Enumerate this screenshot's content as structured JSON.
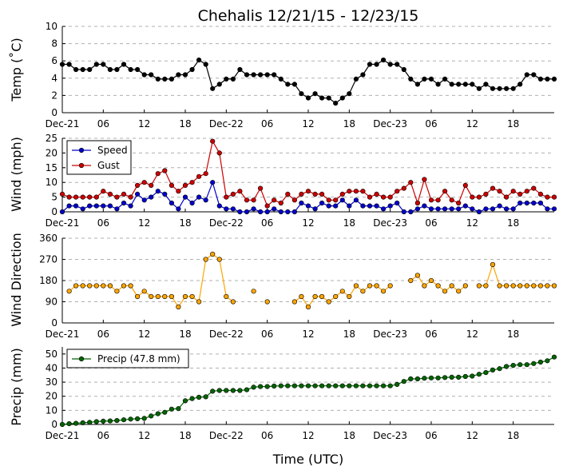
{
  "chart_data": {
    "title": "Chehalis 12/21/15 - 12/23/15",
    "xlabel": "Time (UTC)",
    "x_hours": [
      0,
      1,
      2,
      3,
      4,
      5,
      6,
      7,
      8,
      9,
      10,
      11,
      12,
      13,
      14,
      15,
      16,
      17,
      18,
      19,
      20,
      21,
      22,
      23,
      24,
      25,
      26,
      27,
      28,
      29,
      30,
      31,
      32,
      33,
      34,
      35,
      36,
      37,
      38,
      39,
      40,
      41,
      42,
      43,
      44,
      45,
      46,
      47,
      48,
      49,
      50,
      51,
      52,
      53,
      54,
      55,
      56,
      57,
      58,
      59,
      60,
      61,
      62,
      63,
      64,
      65,
      66,
      67,
      68,
      69,
      70,
      71,
      72
    ],
    "xtick_hours": [
      0,
      6,
      12,
      18,
      24,
      30,
      36,
      42,
      48,
      54,
      60,
      66
    ],
    "xtick_labels": [
      "Dec-21",
      "06",
      "12",
      "18",
      "Dec-22",
      "06",
      "12",
      "18",
      "Dec-23",
      "06",
      "12",
      "18"
    ],
    "panels": [
      {
        "type": "line",
        "ylabel": "Temp (˚C)",
        "ylim": [
          0,
          10
        ],
        "yticks": [
          0,
          2,
          4,
          6,
          8,
          10
        ],
        "ytick_labels": [
          "0",
          "2",
          "4",
          "6",
          "8",
          "10"
        ],
        "grid": true,
        "legend": null,
        "series": [
          {
            "name": "Temp",
            "color": "#000000",
            "values": [
              5.6,
              5.6,
              5.0,
              5.0,
              5.0,
              5.6,
              5.6,
              5.0,
              5.0,
              5.6,
              5.0,
              5.0,
              4.4,
              4.4,
              3.9,
              3.9,
              3.9,
              4.4,
              4.4,
              5.0,
              6.1,
              5.6,
              2.8,
              3.3,
              3.9,
              3.9,
              5.0,
              4.4,
              4.4,
              4.4,
              4.4,
              4.4,
              3.9,
              3.3,
              3.3,
              2.2,
              1.7,
              2.2,
              1.7,
              1.7,
              1.1,
              1.7,
              2.2,
              3.9,
              4.4,
              5.6,
              5.6,
              6.1,
              5.6,
              5.6,
              5.0,
              3.9,
              3.3,
              3.9,
              3.9,
              3.3,
              3.9,
              3.3,
              3.3,
              3.3,
              3.3,
              2.8,
              3.3,
              2.8,
              2.8,
              2.8,
              2.8,
              3.3,
              4.4,
              4.4,
              3.9,
              3.9,
              3.9
            ]
          }
        ]
      },
      {
        "type": "line",
        "ylabel": "Wind (mph)",
        "ylim": [
          0,
          25
        ],
        "yticks": [
          0,
          5,
          10,
          15,
          20,
          25
        ],
        "ytick_labels": [
          "0",
          "5",
          "10",
          "15",
          "20",
          "25"
        ],
        "grid": true,
        "legend": "top-left",
        "series": [
          {
            "name": "Speed",
            "color": "#0000cc",
            "values": [
              0,
              2,
              2,
              1,
              2,
              2,
              2,
              2,
              1,
              3,
              2,
              6,
              4,
              5,
              7,
              6,
              3,
              1,
              5,
              3,
              5,
              4,
              10,
              2,
              1,
              1,
              0,
              0,
              1,
              0,
              0,
              1,
              0,
              0,
              0,
              3,
              2,
              1,
              3,
              2,
              2,
              4,
              2,
              4,
              2,
              2,
              2,
              1,
              2,
              3,
              0,
              0,
              1,
              2,
              1,
              1,
              1,
              1,
              1,
              2,
              1,
              0,
              1,
              1,
              2,
              1,
              1,
              3,
              3,
              3,
              3,
              1,
              1
            ]
          },
          {
            "name": "Gust",
            "color": "#cc0000",
            "values": [
              6,
              5,
              5,
              5,
              5,
              5,
              7,
              6,
              5,
              6,
              5,
              9,
              10,
              9,
              13,
              14,
              9,
              7,
              9,
              10,
              12,
              13,
              24,
              20,
              5,
              6,
              7,
              4,
              4,
              8,
              2,
              4,
              3,
              6,
              4,
              6,
              7,
              6,
              6,
              4,
              4,
              6,
              7,
              7,
              7,
              5,
              6,
              5,
              5,
              7,
              8,
              10,
              3,
              11,
              4,
              4,
              7,
              4,
              3,
              9,
              5,
              5,
              6,
              8,
              7,
              5,
              7,
              6,
              7,
              8,
              6,
              5,
              5
            ]
          }
        ]
      },
      {
        "type": "scatter",
        "ylabel": "Wind Direction",
        "ylim": [
          0,
          360
        ],
        "yticks": [
          0,
          90,
          180,
          270,
          360
        ],
        "ytick_labels": [
          "0",
          "90",
          "180",
          "270",
          "360"
        ],
        "grid": true,
        "legend": null,
        "series": [
          {
            "name": "Direction",
            "color": "#ffa500",
            "values": [
              null,
              135,
              158,
              158,
              158,
              158,
              158,
              158,
              135,
              158,
              158,
              112,
              135,
              112,
              112,
              112,
              112,
              68,
              112,
              112,
              90,
              270,
              292,
              270,
              112,
              90,
              null,
              null,
              135,
              null,
              90,
              null,
              null,
              null,
              90,
              112,
              68,
              112,
              112,
              90,
              112,
              135,
              112,
              158,
              135,
              158,
              158,
              135,
              158,
              null,
              null,
              180,
              202,
              158,
              180,
              158,
              135,
              158,
              135,
              158,
              null,
              158,
              158,
              248,
              158,
              158,
              158,
              158,
              158,
              158,
              158,
              158,
              158
            ]
          }
        ]
      },
      {
        "type": "line",
        "ylabel": "Precip (mm)",
        "ylim": [
          0,
          55
        ],
        "yticks": [
          0,
          10,
          20,
          30,
          40,
          50
        ],
        "ytick_labels": [
          "0",
          "10",
          "20",
          "30",
          "40",
          "50"
        ],
        "grid": true,
        "legend": "top-left",
        "series": [
          {
            "name": "Precip (47.8 mm)",
            "color": "#006400",
            "values": [
              0.0,
              0.5,
              0.8,
              1.2,
              1.5,
              2.0,
              2.3,
              2.5,
              2.8,
              3.3,
              3.8,
              4.0,
              4.3,
              6.0,
              7.6,
              8.6,
              10.9,
              11.2,
              16.8,
              18.3,
              19.3,
              19.6,
              23.6,
              24.1,
              24.1,
              24.1,
              24.1,
              24.6,
              26.4,
              26.9,
              26.9,
              27.2,
              27.4,
              27.4,
              27.4,
              27.4,
              27.4,
              27.4,
              27.4,
              27.4,
              27.4,
              27.4,
              27.4,
              27.4,
              27.4,
              27.4,
              27.4,
              27.4,
              27.4,
              28.4,
              30.5,
              32.3,
              32.3,
              32.8,
              33.0,
              33.0,
              33.3,
              33.5,
              33.5,
              34.0,
              34.3,
              35.6,
              36.8,
              38.6,
              39.6,
              41.1,
              41.9,
              42.4,
              42.4,
              43.2,
              44.2,
              45.2,
              47.8
            ]
          }
        ]
      }
    ]
  }
}
